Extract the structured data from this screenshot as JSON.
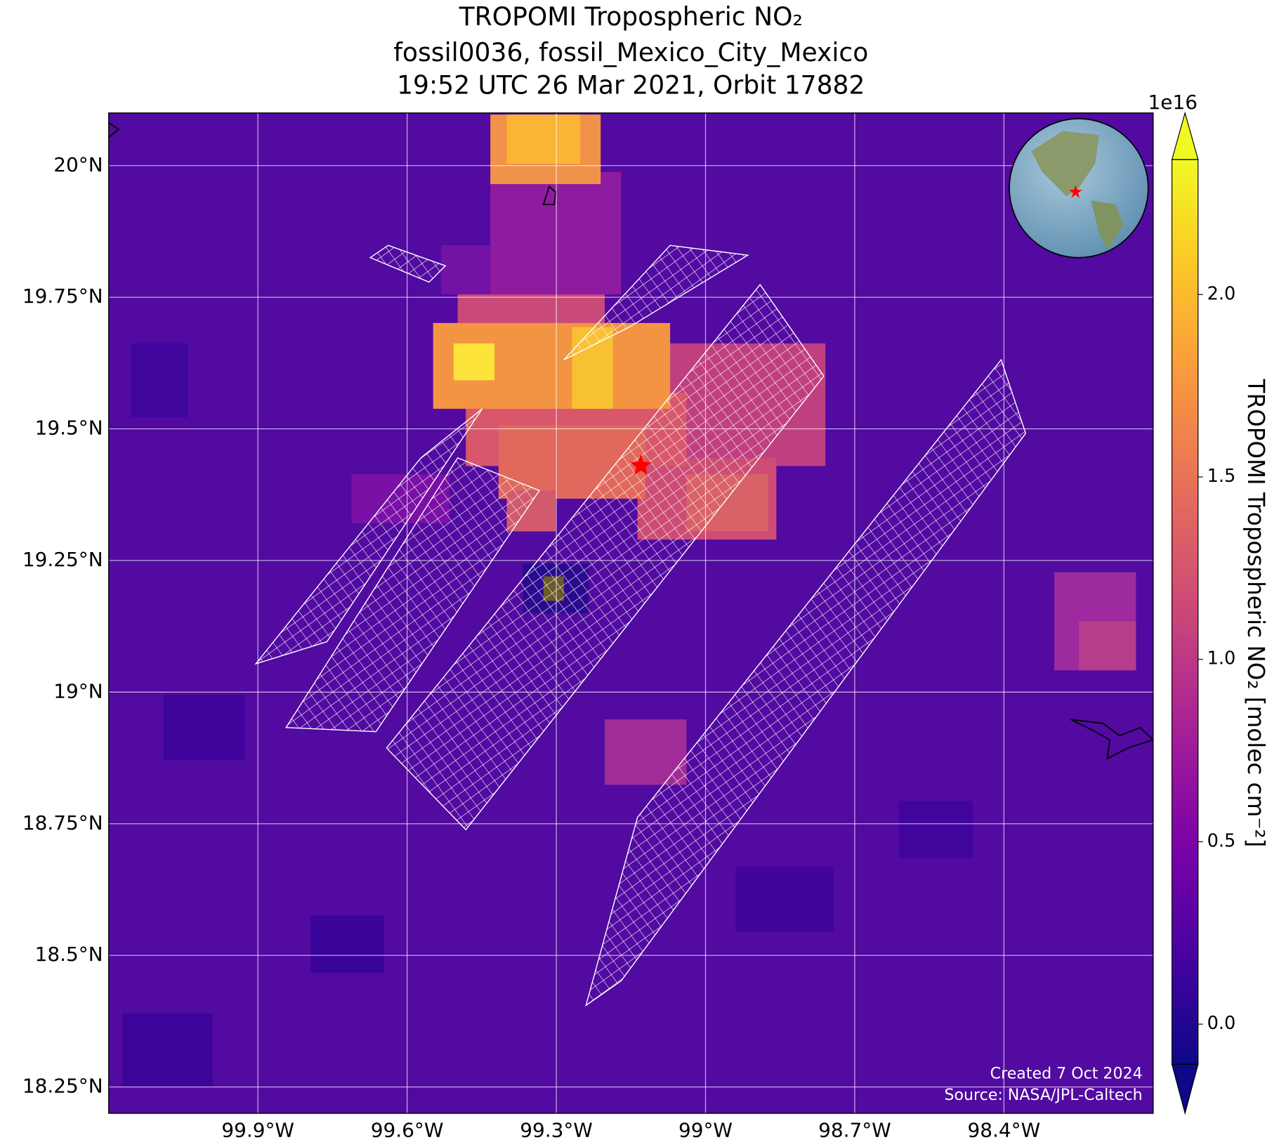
{
  "chart_data": {
    "type": "map",
    "title": [
      "TROPOMI Tropospheric NO₂",
      "fossil0036, fossil_Mexico_City_Mexico",
      "19:52 UTC 26 Mar 2021, Orbit 17882"
    ],
    "xlim": [
      -100.2,
      -98.1
    ],
    "ylim": [
      18.2,
      20.1
    ],
    "xticks": [
      {
        "value": -99.9,
        "label": "99.9°W"
      },
      {
        "value": -99.6,
        "label": "99.6°W"
      },
      {
        "value": -99.3,
        "label": "99.3°W"
      },
      {
        "value": -99.0,
        "label": "99°W"
      },
      {
        "value": -98.7,
        "label": "98.7°W"
      },
      {
        "value": -98.4,
        "label": "98.4°W"
      }
    ],
    "yticks": [
      {
        "value": 18.25,
        "label": "18.25°N"
      },
      {
        "value": 18.5,
        "label": "18.5°N"
      },
      {
        "value": 18.75,
        "label": "18.75°N"
      },
      {
        "value": 19.0,
        "label": "19°N"
      },
      {
        "value": 19.25,
        "label": "19.25°N"
      },
      {
        "value": 19.5,
        "label": "19.5°N"
      },
      {
        "value": 19.75,
        "label": "19.75°N"
      },
      {
        "value": 20.0,
        "label": "20°N"
      }
    ],
    "grid": true,
    "marker": {
      "x": -99.13,
      "y": 19.43,
      "color": "#ff0000"
    },
    "colorbar": {
      "label": "TROPOMI Tropospheric NO₂ [molec cm⁻²]",
      "exponent": "1e16",
      "clim": [
        -0.11,
        2.37
      ],
      "ticks": [
        {
          "value": 0,
          "label": "0.0"
        },
        0.5,
        {
          "value": 1,
          "label": "1.0"
        },
        1.5,
        {
          "value": 2,
          "label": "2.0"
        }
      ]
    },
    "annotations": [
      "Created 7 Oct 2024",
      "Source: NASA/JPL-Caltech"
    ]
  }
}
